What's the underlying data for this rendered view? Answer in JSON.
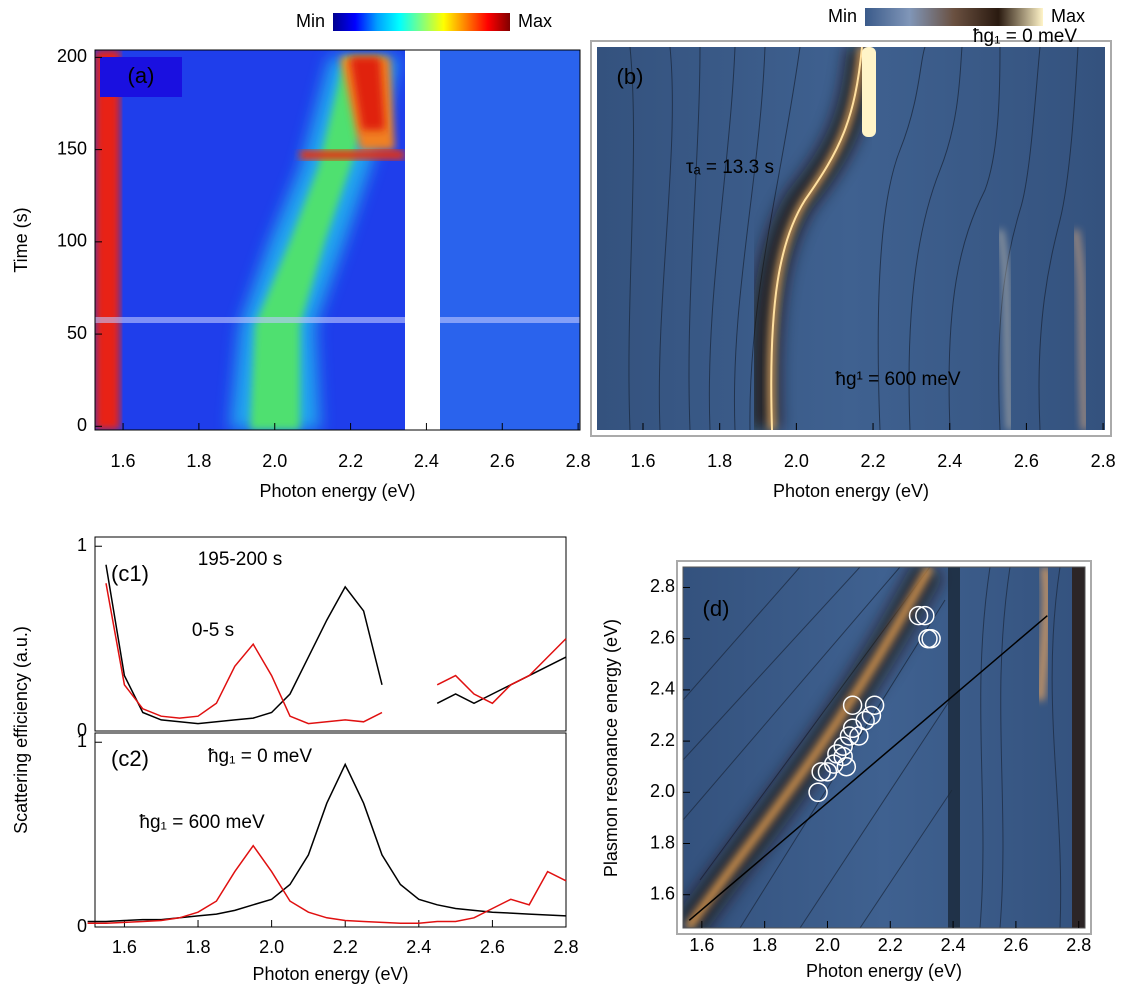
{
  "chart_data": [
    {
      "type": "heatmap",
      "panel_label": "(a)",
      "xlabel": "Photon energy (eV)",
      "ylabel": "Time (s)",
      "xlim": [
        1.526,
        2.805
      ],
      "xticks": [
        1.6,
        1.8,
        {
          "value": 2,
          "label": "2.0"
        },
        2.2,
        2.4,
        2.6,
        2.8
      ],
      "ylim": [
        -2,
        204
      ],
      "yticks": [
        0,
        50,
        100,
        150,
        200
      ],
      "colorbar": {
        "min_label": "Min",
        "max_label": "Max",
        "colors": [
          "#00008f",
          "#0000ff",
          "#00a0ff",
          "#00ffff",
          "#80ff80",
          "#ffff00",
          "#ff8000",
          "#ff0000",
          "#800000"
        ]
      }
    },
    {
      "type": "heatmap",
      "panel_label": "(b)",
      "xlabel": "Photon energy (eV)",
      "xlim": [
        1.48,
        2.805
      ],
      "xticks": [
        1.6,
        1.8,
        {
          "value": 2,
          "label": "2.0"
        },
        2.2,
        2.4,
        2.6,
        2.8
      ],
      "ylim": [
        -2,
        204
      ],
      "annotations": [
        {
          "text": "ħg₁ = 0 meV",
          "color": "#ffffff"
        },
        {
          "text": "τₐ = 13.3 s",
          "color": "#ffffff"
        },
        {
          "text": "ħg¹ = 600 meV",
          "color": "#e01010"
        }
      ],
      "colorbar": {
        "min_label": "Min",
        "max_label": "Max",
        "colors": [
          "#3a5a8a",
          "#8096b8",
          "#6a5040",
          "#2a1a10",
          "#fff4c8"
        ]
      }
    },
    {
      "type": "line",
      "panel_label": "(c1)",
      "ylabel": "Scattering efficiency (a.u.)",
      "xlim": [
        1.52,
        2.8
      ],
      "ylim": [
        0,
        1.05
      ],
      "yticks": [
        0,
        1
      ],
      "x": [
        1.55,
        1.6,
        1.65,
        1.7,
        1.75,
        1.8,
        1.85,
        1.9,
        1.95,
        2.0,
        2.05,
        2.1,
        2.15,
        2.2,
        2.25,
        2.3,
        2.35,
        2.4,
        2.45,
        2.5,
        2.55,
        2.6,
        2.65,
        2.7,
        2.75,
        2.8
      ],
      "series": [
        {
          "name": "195-200 s",
          "color": "#000000",
          "values": [
            0.9,
            0.3,
            0.1,
            0.06,
            0.05,
            0.04,
            0.05,
            0.06,
            0.07,
            0.1,
            0.2,
            0.4,
            0.6,
            0.78,
            0.65,
            0.25,
            null,
            null,
            0.15,
            0.2,
            0.15,
            0.2,
            0.25,
            0.3,
            0.35,
            0.4
          ]
        },
        {
          "name": "0-5 s",
          "color": "#e01010",
          "values": [
            0.8,
            0.25,
            0.12,
            0.08,
            0.07,
            0.08,
            0.15,
            0.35,
            0.47,
            0.3,
            0.08,
            0.04,
            0.05,
            0.06,
            0.05,
            0.1,
            null,
            null,
            0.25,
            0.3,
            0.2,
            0.15,
            0.25,
            0.3,
            0.4,
            0.5
          ]
        }
      ]
    },
    {
      "type": "line",
      "panel_label": "(c2)",
      "xlabel": "Photon energy (eV)",
      "xlim": [
        1.52,
        2.8
      ],
      "xticks": [
        1.6,
        1.8,
        {
          "value": 2,
          "label": "2.0"
        },
        2.2,
        2.4,
        2.6,
        2.8
      ],
      "ylim": [
        0,
        1.05
      ],
      "yticks": [
        0,
        1
      ],
      "x": [
        1.5,
        1.55,
        1.6,
        1.65,
        1.7,
        1.75,
        1.8,
        1.85,
        1.9,
        1.95,
        2.0,
        2.05,
        2.1,
        2.15,
        2.2,
        2.25,
        2.3,
        2.35,
        2.4,
        2.45,
        2.5,
        2.55,
        2.6,
        2.65,
        2.7,
        2.75,
        2.8
      ],
      "series": [
        {
          "name": "ħg₁ = 0 meV",
          "color": "#000000",
          "values": [
            0.03,
            0.03,
            0.035,
            0.04,
            0.04,
            0.05,
            0.06,
            0.07,
            0.09,
            0.12,
            0.15,
            0.23,
            0.39,
            0.67,
            0.88,
            0.67,
            0.39,
            0.23,
            0.15,
            0.12,
            0.1,
            0.09,
            0.08,
            0.075,
            0.07,
            0.065,
            0.06
          ]
        },
        {
          "name": "ħg₁ = 600 meV",
          "color": "#e01010",
          "values": [
            0.02,
            0.02,
            0.025,
            0.03,
            0.035,
            0.05,
            0.08,
            0.14,
            0.3,
            0.44,
            0.3,
            0.14,
            0.08,
            0.05,
            0.035,
            0.03,
            0.025,
            0.02,
            0.02,
            0.03,
            0.03,
            0.05,
            0.1,
            0.15,
            0.12,
            0.3,
            0.25
          ]
        }
      ]
    },
    {
      "type": "scatter",
      "panel_label": "(d)",
      "xlabel": "Photon energy (eV)",
      "ylabel": "Plasmon resonance energy (eV)",
      "xlim": [
        1.54,
        2.82
      ],
      "xticks": [
        1.6,
        1.8,
        {
          "value": 2,
          "label": "2.0"
        },
        2.2,
        2.4,
        2.6,
        2.8
      ],
      "ylim": [
        1.47,
        2.88
      ],
      "yticks": [
        1.6,
        1.8,
        {
          "value": 2,
          "label": "2.0"
        },
        2.2,
        2.4,
        2.6,
        2.8
      ],
      "x": [
        1.97,
        1.98,
        2.0,
        2.02,
        2.03,
        2.05,
        2.06,
        2.05,
        2.07,
        2.08,
        2.1,
        2.12,
        2.14,
        2.15,
        2.08,
        2.29,
        2.31,
        2.32,
        2.33
      ],
      "values": [
        2.0,
        2.08,
        2.08,
        2.11,
        2.15,
        2.14,
        2.1,
        2.18,
        2.22,
        2.25,
        2.22,
        2.28,
        2.3,
        2.34,
        2.34,
        2.69,
        2.69,
        2.6,
        2.6
      ],
      "marker_color": "#ffffff",
      "reference_line": {
        "x": [
          1.56,
          2.7
        ],
        "values": [
          1.5,
          2.69
        ],
        "color": "#000000"
      }
    }
  ]
}
